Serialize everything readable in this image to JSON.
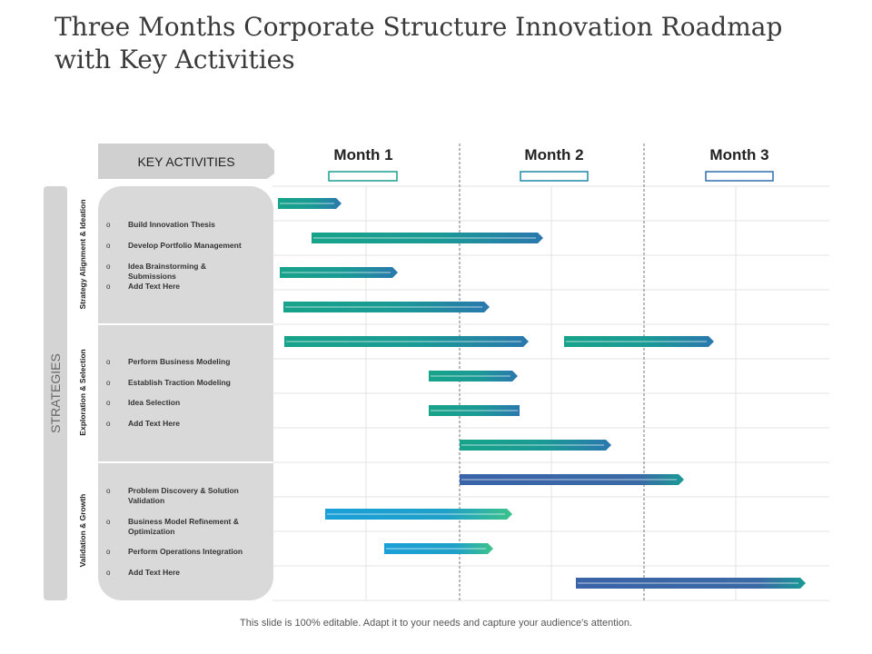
{
  "title": "Three Months Corporate Structure Innovation Roadmap with Key Activities",
  "header": {
    "key_activities": "KEY ACTIVITIES",
    "months": [
      "Month 1",
      "Month 2",
      "Month 3"
    ]
  },
  "strategies_label": "STRATEGIES",
  "groups": [
    {
      "label": "Strategy Alignment & Ideation",
      "items": [
        "Build Innovation Thesis",
        "Develop Portfolio Management",
        "Idea Brainstorming & Submissions",
        "Add Text Here"
      ]
    },
    {
      "label": "Exploration & Selection",
      "items": [
        "Perform Business Modeling",
        "Establish Traction Modeling",
        "Idea Selection",
        "Add Text Here"
      ]
    },
    {
      "label": "Validation & Growth",
      "items": [
        "Problem Discovery & Solution Validation",
        "Business Model Refinement & Optimization",
        "Perform Operations Integration",
        "Add Text Here"
      ]
    }
  ],
  "footer": "This slide is 100% editable. Adapt it to your needs and capture your audience's attention."
}
